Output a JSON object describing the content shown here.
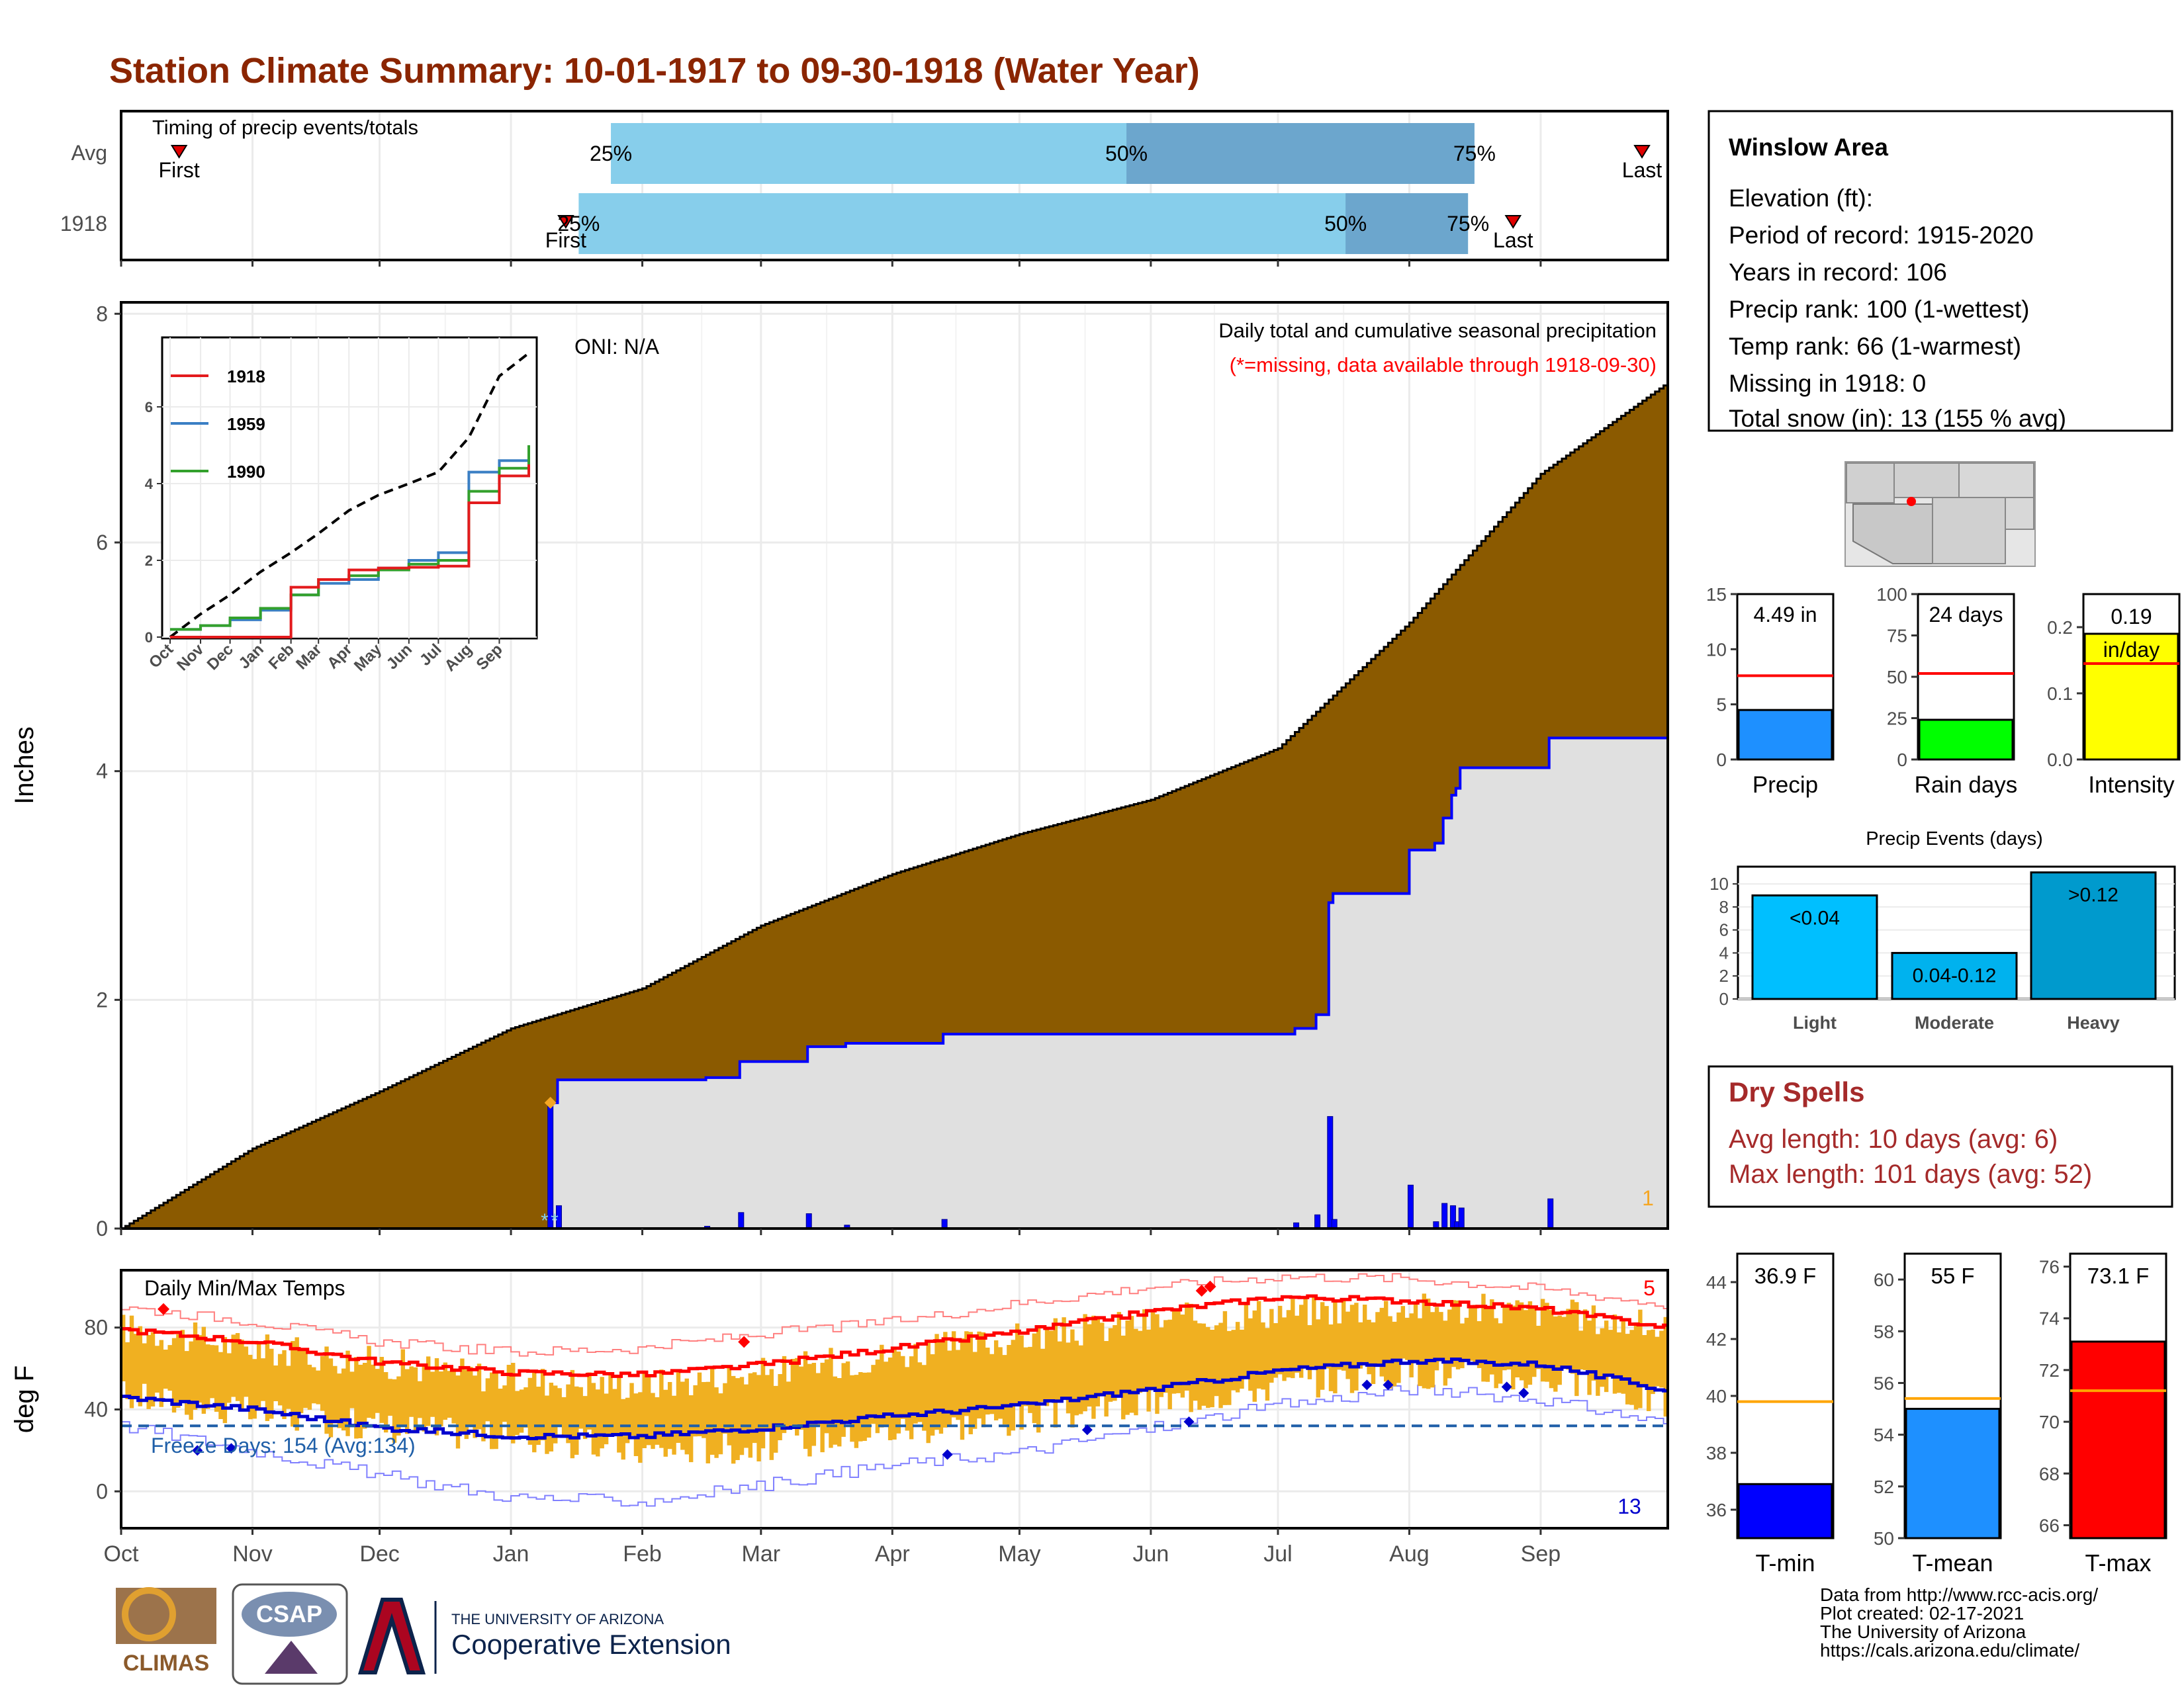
{
  "page_title": "Station Climate Summary: 10-01-1917 to 09-30-1918 (Water Year)",
  "colors": {
    "title": "#8b2500",
    "cumulative_avg": "#8b5a00",
    "cumulative_year": "#e0e0e0",
    "year_line": "#0000ff",
    "temp_bars": "#f0b021",
    "tmax_avg": "#ff0000",
    "tmin_avg": "#0000cd",
    "timing_light": "#87ceeb",
    "timing_dark": "#6ca6cd",
    "dry_spells": "#a52a2a"
  },
  "timing": {
    "title": "Timing of precip events/totals",
    "rows": [
      {
        "label": "Avg",
        "first_label": "First",
        "last_label": "Last",
        "p25_label": "25%",
        "p50_label": "50%",
        "p75_label": "75%",
        "first": 0.45,
        "p25": 3.8,
        "p50": 7.8,
        "p75": 10.5,
        "last": 11.8
      },
      {
        "label": "1918",
        "first_label": "First",
        "last_label": "Last",
        "p25_label": "25%",
        "p50_label": "50%",
        "p75_label": "75%",
        "first": 3.45,
        "p25": 3.55,
        "p50": 9.5,
        "p75": 10.45,
        "last": 10.8
      }
    ]
  },
  "precip_panel": {
    "ylabel": "Inches",
    "subtitle": "Daily total and cumulative seasonal precipitation",
    "note": "(*=missing, data available through 1918-09-30)",
    "oni": "ONI: N/A",
    "missing_count": "1",
    "missing_marker": "*",
    "y_ticks": [
      "0",
      "2",
      "4",
      "6",
      "8"
    ]
  },
  "months": [
    "Oct",
    "Nov",
    "Dec",
    "Jan",
    "Feb",
    "Mar",
    "Apr",
    "May",
    "Jun",
    "Jul",
    "Aug",
    "Sep"
  ],
  "inset": {
    "y_ticks": [
      "0",
      "2",
      "4",
      "6"
    ],
    "legend": [
      {
        "name": "1918",
        "color": "#e31a1c"
      },
      {
        "name": "1959",
        "color": "#3a7fc4"
      },
      {
        "name": "1990",
        "color": "#33a02c"
      }
    ]
  },
  "temp_panel": {
    "ylabel": "deg F",
    "title": "Daily Min/Max Temps",
    "freeze_label": "Freeze Days: 154 (Avg:134)",
    "max_count": "5",
    "min_count": "13",
    "y_ticks": [
      "0",
      "40",
      "80"
    ]
  },
  "station": {
    "name": "Winslow Area",
    "lines": [
      "Elevation (ft):",
      "Period of record: 1915-2020",
      "Years in record: 106",
      "Precip rank: 100 (1-wettest)",
      "Temp rank: 66 (1-warmest)",
      "Missing in 1918: 0",
      "Total snow (in): 13 (155 % avg)"
    ]
  },
  "mini_bars": [
    {
      "label": "Precip",
      "value_label": "4.49 in",
      "ticks": [
        "0",
        "5",
        "10",
        "15"
      ],
      "color": "#1e90ff"
    },
    {
      "label": "Rain days",
      "value_label": "24 days",
      "ticks": [
        "0",
        "25",
        "50",
        "75",
        "100"
      ],
      "color": "#00ff00"
    },
    {
      "label": "Intensity",
      "value_label": "0.19 in/day",
      "ticks": [
        "0.0",
        "0.1",
        "0.2"
      ],
      "color": "#ffff00"
    }
  ],
  "events": {
    "title": "Precip Events (days)",
    "ticks": [
      "0",
      "2",
      "4",
      "6",
      "8",
      "10"
    ],
    "bars": [
      {
        "category": "Light",
        "label": "<0.04",
        "color": "#00bfff"
      },
      {
        "category": "Moderate",
        "label": "0.04-0.12",
        "color": "#00b2ee"
      },
      {
        "category": "Heavy",
        "label": ">0.12",
        "color": "#009acd"
      }
    ]
  },
  "dry_spells": {
    "title": "Dry Spells",
    "avg_line": "Avg length: 10 days (avg: 6)",
    "max_line": "Max length: 101 days (avg: 52)"
  },
  "temp_bars": [
    {
      "label": "T-min",
      "value_label": "36.9 F",
      "ticks": [
        "36",
        "38",
        "40",
        "42",
        "44"
      ],
      "color": "#0000ff"
    },
    {
      "label": "T-mean",
      "value_label": "55 F",
      "ticks": [
        "50",
        "52",
        "54",
        "56",
        "58",
        "60"
      ],
      "color": "#1e90ff"
    },
    {
      "label": "T-max",
      "value_label": "73.1 F",
      "ticks": [
        "66",
        "68",
        "70",
        "72",
        "74",
        "76"
      ],
      "color": "#ff0000"
    }
  ],
  "credits": [
    "Data from http://www.rcc-acis.org/",
    "Plot created: 02-17-2021",
    "The University of Arizona",
    "https://cals.arizona.edu/climate/"
  ],
  "logos": {
    "climas": "CLIMAS",
    "csap": "CSAP",
    "ua_small": "THE UNIVERSITY OF ARIZONA",
    "ua_big": "Cooperative Extension"
  },
  "chart_data": [
    {
      "type": "area",
      "title": "Daily total and cumulative seasonal precipitation",
      "ylabel": "Inches",
      "xlabel": "",
      "ylim": [
        0,
        8.1
      ],
      "x": [
        "10-01",
        "11-01",
        "12-01",
        "01-01",
        "02-01",
        "03-01",
        "04-01",
        "05-01",
        "06-01",
        "07-01",
        "08-01",
        "09-01",
        "09-30"
      ],
      "series": [
        {
          "values": [
            0.0,
            0.7,
            1.2,
            1.75,
            2.1,
            2.65,
            3.1,
            3.45,
            3.75,
            4.2,
            5.3,
            6.6,
            7.4
          ]
        },
        {
          "name": "1918",
          "values": [
            0.0,
            0.0,
            0.0,
            0.0,
            1.33,
            1.5,
            1.75,
            1.82,
            1.82,
            1.85,
            3.5,
            4.22,
            4.49
          ]
        }
      ],
      "daily_precip": [
        {
          "date": "01-10",
          "value": 1.1
        },
        {
          "date": "01-12",
          "value": 0.2
        },
        {
          "date": "02-16",
          "value": 0.02
        },
        {
          "date": "02-24",
          "value": 0.14
        },
        {
          "date": "03-12",
          "value": 0.13
        },
        {
          "date": "03-21",
          "value": 0.03
        },
        {
          "date": "04-13",
          "value": 0.08
        },
        {
          "date": "07-05",
          "value": 0.05
        },
        {
          "date": "07-10",
          "value": 0.12
        },
        {
          "date": "07-13",
          "value": 0.98
        },
        {
          "date": "07-14",
          "value": 0.08
        },
        {
          "date": "08-01",
          "value": 0.38
        },
        {
          "date": "08-07",
          "value": 0.06
        },
        {
          "date": "08-09",
          "value": 0.22
        },
        {
          "date": "08-11",
          "value": 0.2
        },
        {
          "date": "08-12",
          "value": 0.06
        },
        {
          "date": "08-13",
          "value": 0.18
        },
        {
          "date": "09-03",
          "value": 0.26
        }
      ],
      "grid": true
    },
    {
      "type": "line",
      "title": "",
      "xlabel": "",
      "ylabel": "",
      "ylim": [
        0,
        7.5
      ],
      "x": [
        "Oct",
        "Nov",
        "Dec",
        "Jan",
        "Feb",
        "Mar",
        "Apr",
        "May",
        "Jun",
        "Jul",
        "Aug",
        "Sep",
        "Sep-end"
      ],
      "series": [
        {
          "values": [
            0.0,
            0.6,
            1.1,
            1.7,
            2.2,
            2.7,
            3.3,
            3.7,
            4.0,
            4.3,
            5.2,
            6.8,
            7.4
          ]
        },
        {
          "name": "1918",
          "values": [
            0.0,
            0.0,
            0.0,
            0.0,
            1.3,
            1.5,
            1.75,
            1.8,
            1.82,
            1.85,
            3.5,
            4.2,
            4.5
          ]
        },
        {
          "name": "1959",
          "values": [
            0.2,
            0.3,
            0.45,
            0.7,
            1.1,
            1.4,
            1.5,
            1.8,
            2.0,
            2.2,
            4.3,
            4.6,
            4.8
          ]
        },
        {
          "name": "1990",
          "values": [
            0.2,
            0.3,
            0.5,
            0.75,
            1.1,
            1.5,
            1.6,
            1.75,
            1.9,
            2.0,
            3.8,
            4.4,
            5.0
          ]
        }
      ]
    },
    {
      "type": "bar",
      "title": "Daily Min/Max Temps",
      "ylabel": "deg F",
      "xlabel": "",
      "ylim": [
        -18,
        108
      ],
      "x": [
        "10-01",
        "11-01",
        "12-01",
        "01-01",
        "02-01",
        "03-01",
        "04-01",
        "05-01",
        "06-01",
        "07-01",
        "08-01",
        "09-01",
        "09-30"
      ],
      "series": [
        {
          "values": [
            80,
            70,
            63,
            55,
            52,
            58,
            67,
            75,
            83,
            88,
            90,
            88,
            79
          ]
        },
        {
          "values": [
            47,
            38,
            32,
            26,
            20,
            22,
            30,
            35,
            43,
            52,
            58,
            56,
            43
          ]
        },
        {
          "values": [
            79,
            73,
            63,
            58,
            57,
            62,
            70,
            78,
            88,
            95,
            93,
            89,
            80
          ]
        },
        {
          "values": [
            46,
            40,
            31,
            27,
            27,
            31,
            37,
            42,
            50,
            59,
            64,
            62,
            49
          ]
        },
        {
          "values": [
            90,
            83,
            73,
            68,
            70,
            77,
            83,
            92,
            100,
            105,
            104,
            99,
            91
          ]
        },
        {
          "values": [
            32,
            20,
            8,
            -3,
            -5,
            3,
            13,
            19,
            31,
            42,
            50,
            45,
            33
          ]
        }
      ],
      "freeze_threshold": 32
    },
    {
      "type": "bar",
      "title": "",
      "categories": [
        "Precip",
        "Rain days",
        "Intensity"
      ],
      "values": [
        4.49,
        24,
        0.19
      ],
      "averages": [
        7.6,
        52,
        0.145
      ],
      "ylims": [
        [
          0,
          15
        ],
        [
          0,
          100
        ],
        [
          0,
          0.25
        ]
      ]
    },
    {
      "type": "bar",
      "title": "Precip Events (days)",
      "categories": [
        "Light",
        "Moderate",
        "Heavy"
      ],
      "values": [
        9,
        4,
        11
      ],
      "ylim": [
        0,
        11.5
      ]
    },
    {
      "type": "bar",
      "title": "",
      "categories": [
        "T-min",
        "T-mean",
        "T-max"
      ],
      "values": [
        36.9,
        55,
        73.1
      ],
      "averages": [
        39.8,
        55.4,
        71.2
      ],
      "ylims": [
        [
          35,
          45
        ],
        [
          50,
          61
        ],
        [
          65.5,
          76.5
        ]
      ]
    }
  ]
}
